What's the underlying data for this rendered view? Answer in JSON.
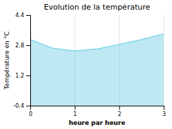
{
  "chart_data": {
    "type": "area",
    "title": "Evolution de la température",
    "xlabel": "heure par heure",
    "ylabel": "Température en °C",
    "x": [
      0,
      0.5,
      1.0,
      1.5,
      2.0,
      2.5,
      3.0
    ],
    "values": [
      3.1,
      2.65,
      2.5,
      2.6,
      2.85,
      3.1,
      3.4
    ],
    "color": "#7dd4e8",
    "xlim": [
      0,
      3
    ],
    "ylim": [
      -0.4,
      4.4
    ],
    "xticks": [
      0,
      1,
      2,
      3
    ],
    "yticks": [
      -0.4,
      1.2,
      2.8,
      4.4
    ],
    "grid": "x"
  }
}
